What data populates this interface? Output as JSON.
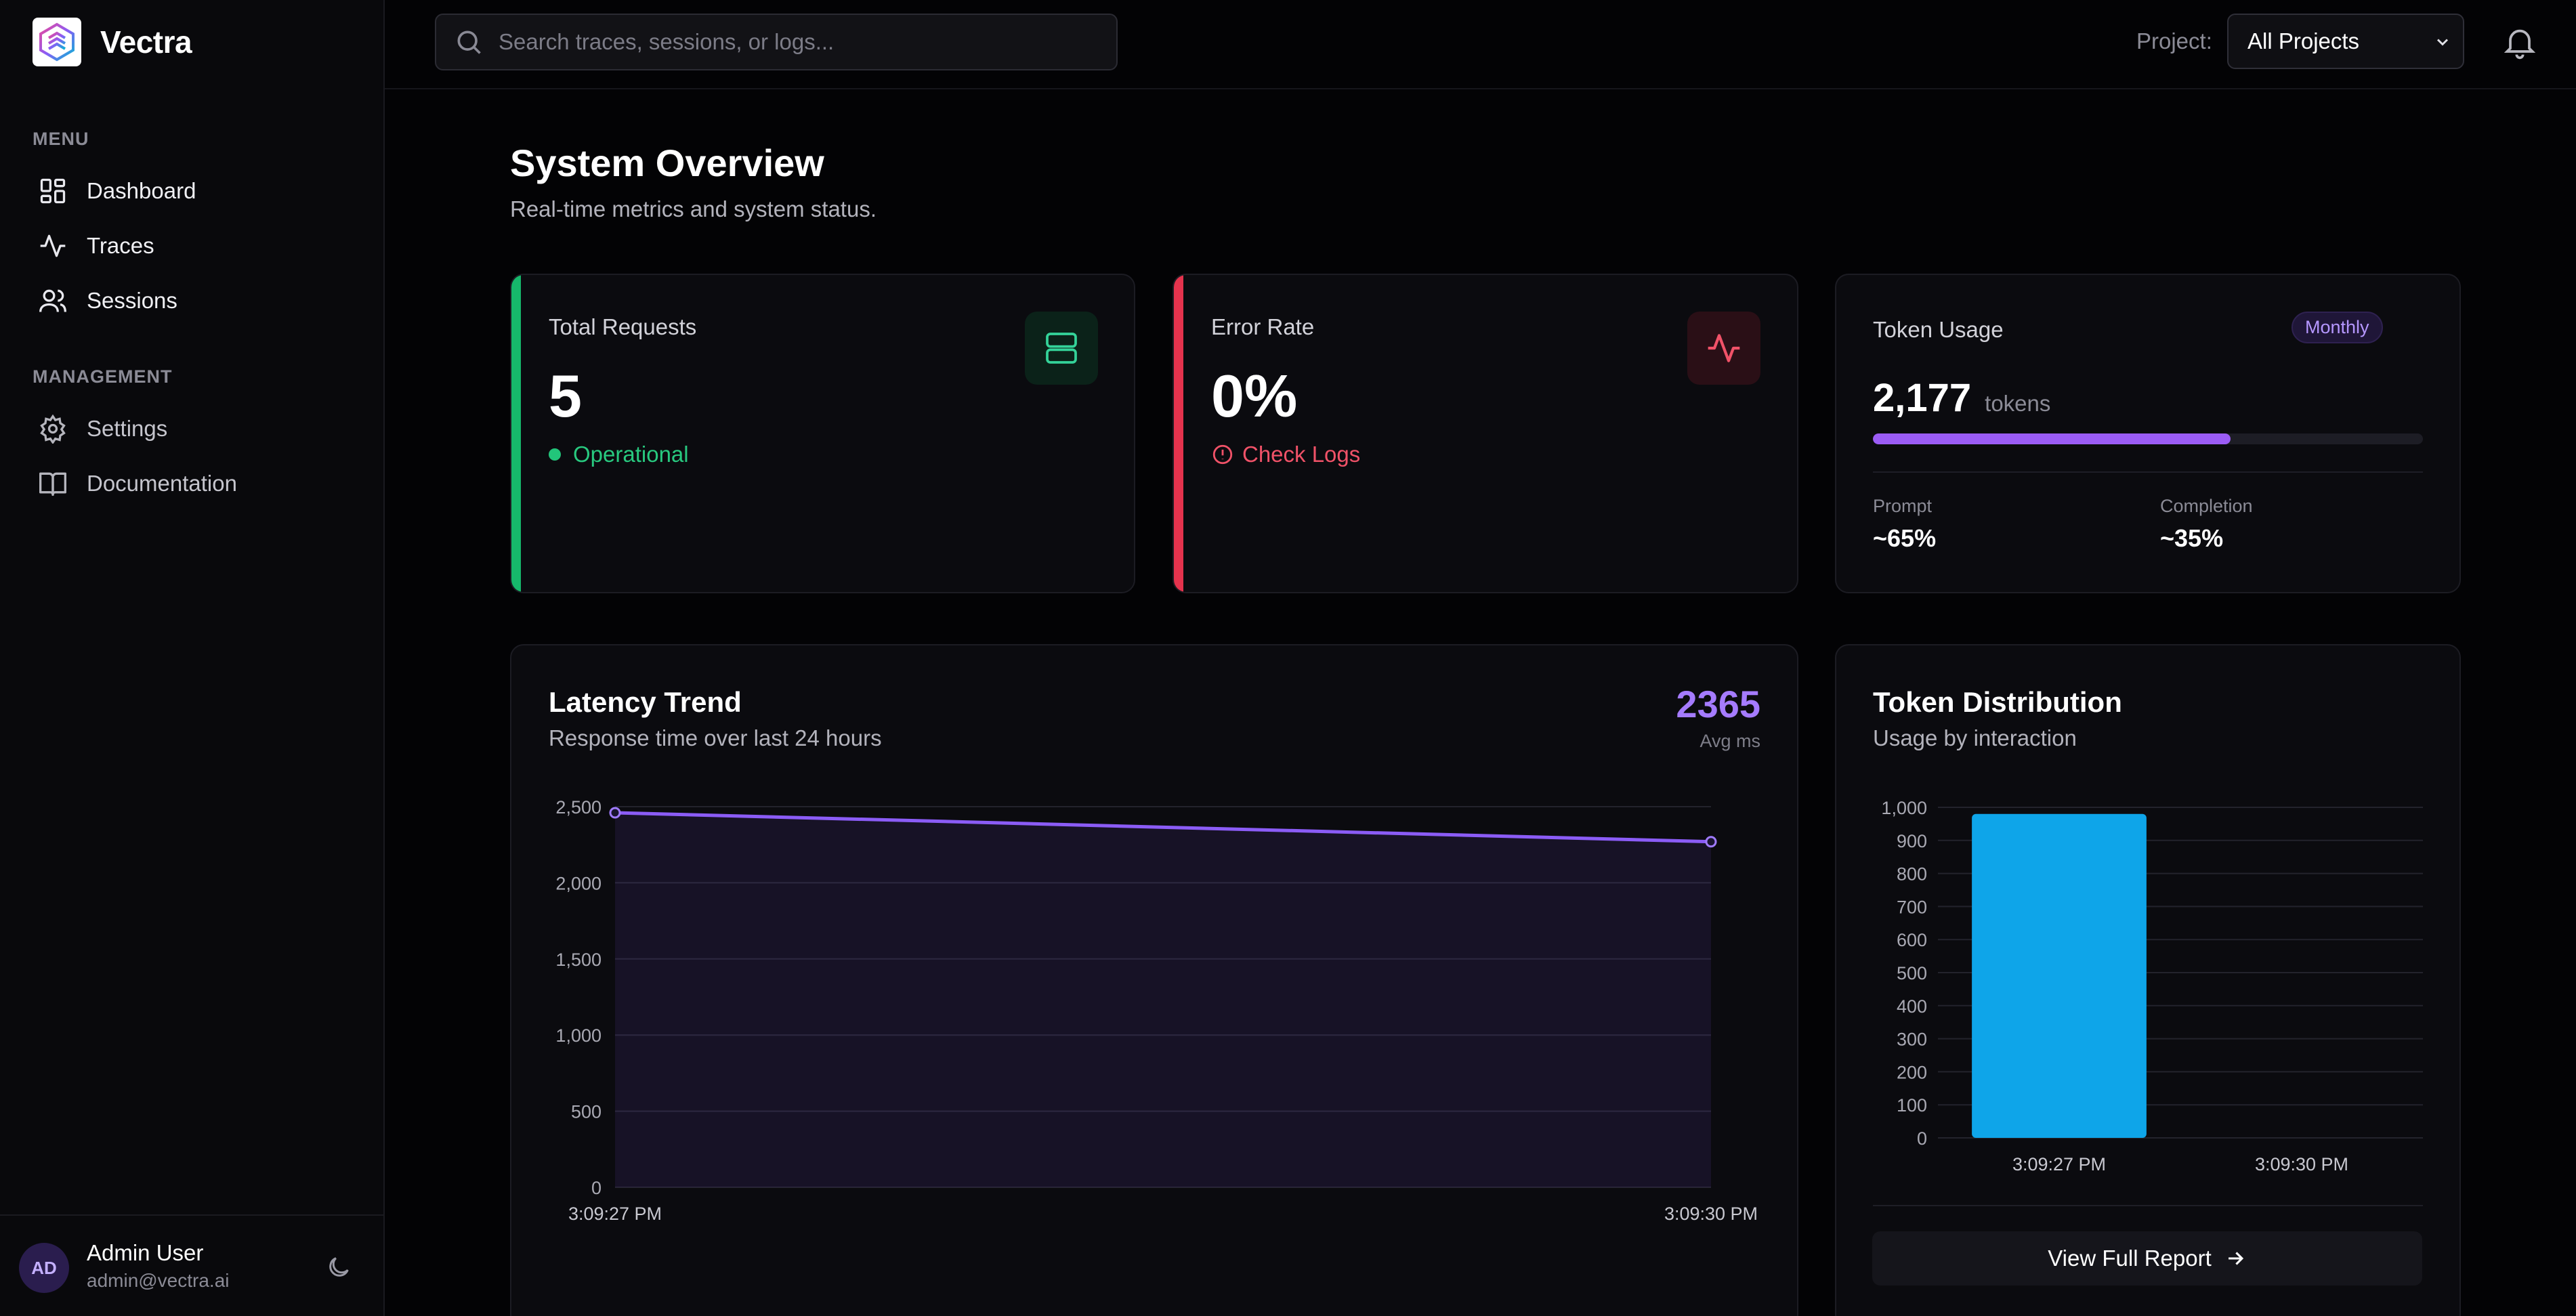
{
  "app": {
    "name": "Vectra"
  },
  "sidebar": {
    "menu_heading": "MENU",
    "menu_items": [
      {
        "label": "Dashboard",
        "icon": "dashboard-icon"
      },
      {
        "label": "Traces",
        "icon": "activity-icon"
      },
      {
        "label": "Sessions",
        "icon": "users-icon"
      }
    ],
    "management_heading": "MANAGEMENT",
    "management_items": [
      {
        "label": "Settings",
        "icon": "gear-icon"
      },
      {
        "label": "Documentation",
        "icon": "book-icon"
      }
    ],
    "user": {
      "initials": "AD",
      "name": "Admin User",
      "email": "admin@vectra.ai"
    }
  },
  "header": {
    "search_placeholder": "Search traces, sessions, or logs...",
    "project_label": "Project:",
    "project_value": "All Projects"
  },
  "page": {
    "title": "System Overview",
    "subtitle": "Real-time metrics and system status."
  },
  "stats": {
    "requests": {
      "label": "Total Requests",
      "value": "5",
      "status": "Operational",
      "accent": "#16b86b"
    },
    "errors": {
      "label": "Error Rate",
      "value": "0%",
      "status": "Check Logs",
      "accent": "#e5334d"
    },
    "tokens": {
      "label": "Token Usage",
      "badge": "Monthly",
      "value": "2,177",
      "unit": "tokens",
      "progress": 0.65,
      "prompt_label": "Prompt",
      "prompt_value": "~65%",
      "completion_label": "Completion",
      "completion_value": "~35%"
    }
  },
  "latency": {
    "title": "Latency Trend",
    "subtitle": "Response time over last 24 hours",
    "avg_value": "2365",
    "avg_label": "Avg ms"
  },
  "distribution": {
    "title": "Token Distribution",
    "subtitle": "Usage by interaction",
    "button_label": "View Full Report"
  },
  "chart_data": [
    {
      "type": "area",
      "x": [
        "3:09:27 PM",
        "3:09:30 PM"
      ],
      "series": [
        {
          "values": [
            2460,
            2270
          ]
        }
      ],
      "ylim": [
        0,
        2500
      ],
      "yticks": [
        "0",
        "500",
        "1,000",
        "1,500",
        "2,000",
        "2,500"
      ],
      "grid": true,
      "color": "#8b5cf6"
    },
    {
      "type": "bar",
      "categories": [
        "3:09:27 PM",
        "3:09:30 PM"
      ],
      "values": [
        980,
        0
      ],
      "ylim": [
        0,
        1000
      ],
      "yticks": [
        "0",
        "100",
        "200",
        "300",
        "400",
        "500",
        "600",
        "700",
        "800",
        "900",
        "1,000"
      ],
      "grid": true,
      "color": "#0ea5e9"
    }
  ]
}
